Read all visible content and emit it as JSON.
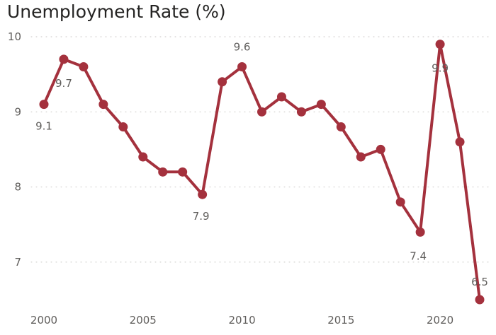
{
  "chart_data": {
    "type": "line",
    "title": "Unemployment Rate (%)",
    "xlabel": "",
    "ylabel": "",
    "xlim": [
      2000,
      2022
    ],
    "ylim": [
      6.5,
      10
    ],
    "x_ticks": [
      "2000",
      "2005",
      "2010",
      "2015",
      "2020"
    ],
    "y_ticks": [
      "7",
      "8",
      "9",
      "10"
    ],
    "grid": "horizontal dotted",
    "line_color": "#a4313d",
    "series": [
      {
        "x": [
          2000,
          2001,
          2002,
          2003,
          2004,
          2005,
          2006,
          2007,
          2008,
          2009,
          2010,
          2011,
          2012,
          2013,
          2014,
          2015,
          2016,
          2017,
          2018,
          2019,
          2020,
          2021,
          2022
        ],
        "values": [
          9.1,
          9.7,
          9.6,
          9.1,
          8.8,
          8.4,
          8.2,
          8.2,
          7.9,
          9.4,
          9.6,
          9.0,
          9.2,
          9.0,
          9.1,
          8.8,
          8.4,
          8.5,
          7.8,
          7.4,
          9.9,
          8.6,
          6.5
        ]
      }
    ],
    "data_labels": [
      {
        "x": 2000,
        "text": "9.1"
      },
      {
        "x": 2001,
        "text": "9.7"
      },
      {
        "x": 2008,
        "text": "7.9"
      },
      {
        "x": 2010,
        "text": "9.6"
      },
      {
        "x": 2019,
        "text": "7.4"
      },
      {
        "x": 2020,
        "text": "9.9"
      },
      {
        "x": 2022,
        "text": "6.5"
      }
    ]
  }
}
